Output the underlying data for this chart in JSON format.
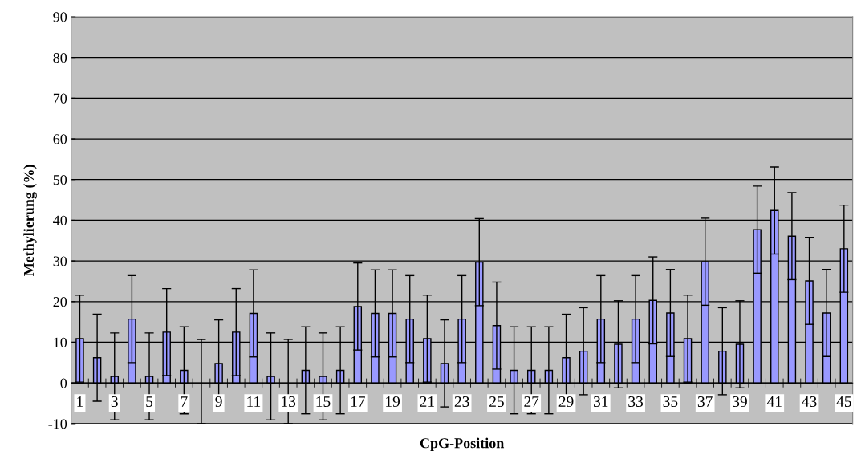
{
  "chart_data": {
    "type": "bar",
    "xlabel": "CpG-Position",
    "ylabel": "Methylierung (%)",
    "categories": [
      "1",
      null,
      "3",
      null,
      "5",
      null,
      "7",
      null,
      "9",
      null,
      "11",
      null,
      "13",
      null,
      "15",
      null,
      "17",
      null,
      "19",
      null,
      "21",
      null,
      "23",
      null,
      "25",
      null,
      "27",
      null,
      "29",
      null,
      "31",
      null,
      "33",
      null,
      "35",
      null,
      "37",
      null,
      "39",
      null,
      "41",
      null,
      "43",
      null,
      "45"
    ],
    "values": [
      10.9,
      6.2,
      1.6,
      15.7,
      1.6,
      12.5,
      3.1,
      0,
      4.8,
      12.5,
      17.1,
      1.6,
      0,
      3.1,
      1.6,
      3.1,
      18.8,
      17.1,
      17.1,
      15.7,
      10.9,
      4.8,
      15.7,
      29.7,
      14.1,
      3.1,
      3.1,
      3.1,
      6.2,
      7.8,
      15.7,
      9.5,
      15.7,
      20.3,
      17.2,
      10.9,
      29.8,
      7.8,
      9.5,
      37.7,
      42.4,
      36.1,
      25.1,
      17.2,
      33.0
    ],
    "errors": [
      10.7,
      10.7,
      10.7,
      10.7,
      10.7,
      10.7,
      10.7,
      [
        -10,
        10.7
      ],
      10.7,
      10.7,
      10.7,
      10.7,
      [
        -10,
        10.7
      ],
      10.7,
      10.7,
      10.7,
      10.7,
      10.7,
      10.7,
      10.7,
      10.7,
      10.7,
      10.7,
      10.7,
      10.7,
      10.7,
      10.7,
      10.7,
      10.7,
      10.7,
      10.7,
      10.7,
      10.7,
      10.7,
      10.7,
      10.7,
      10.7,
      10.7,
      10.7,
      10.7,
      10.7,
      10.7,
      10.7,
      10.7,
      10.7
    ],
    "color": "#9999ff",
    "ylim": [
      -10,
      90
    ],
    "yticks": [
      -10,
      0,
      10,
      20,
      30,
      40,
      50,
      60,
      70,
      80,
      90
    ],
    "grid": "y",
    "legend": false
  }
}
